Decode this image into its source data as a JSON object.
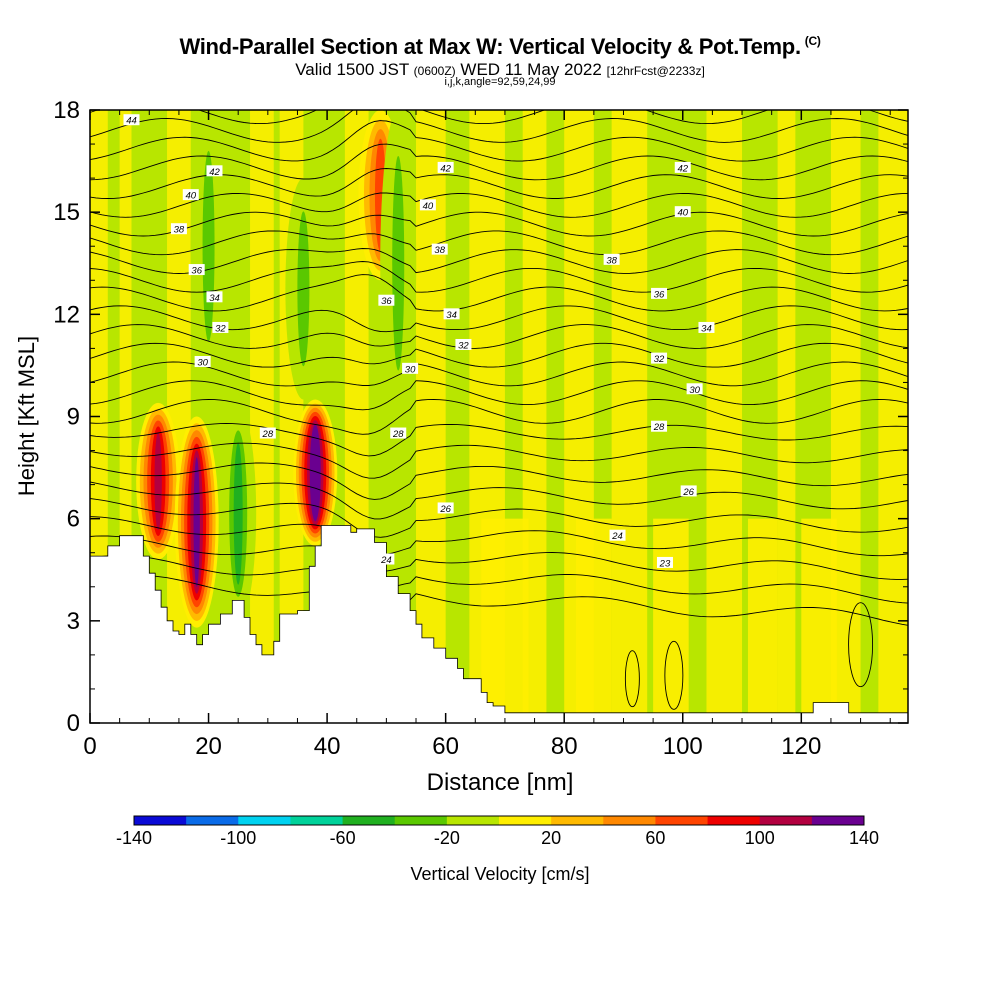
{
  "header": {
    "title": "Wind-Parallel Section at Max W: Vertical Velocity & Pot.Temp.",
    "title_tag": "(C)",
    "subtitle_valid": "Valid 1500 JST",
    "subtitle_z": "(0600Z)",
    "subtitle_date": "WED 11 May 2022",
    "subtitle_fcst": "[12hrFcst@2233z]",
    "indices": "i,j,k,angle=92,59,24,99"
  },
  "colorbar": {
    "label": "Vertical Velocity [cm/s]",
    "tick_labels": [
      "-140",
      "-100",
      "-60",
      "-20",
      "20",
      "60",
      "100",
      "140"
    ],
    "colors": [
      "#0a0ad6",
      "#0a6be8",
      "#00d2f0",
      "#00d29a",
      "#20b020",
      "#5ac800",
      "#b8e600",
      "#ffee00",
      "#ffba00",
      "#ff8800",
      "#ff4400",
      "#ee0000",
      "#b30040",
      "#6a0090"
    ]
  },
  "chart_data": {
    "type": "heatmap",
    "xlabel": "Distance [nm]",
    "ylabel": "Height [Kft MSL]",
    "xlim": [
      0,
      138
    ],
    "ylim": [
      0,
      18
    ],
    "x_ticks": [
      "0",
      "20",
      "40",
      "60",
      "80",
      "100",
      "120"
    ],
    "y_ticks": [
      "0",
      "3",
      "6",
      "9",
      "12",
      "15",
      "18"
    ],
    "terrain_height_kft": [
      [
        0,
        4.9
      ],
      [
        3,
        5.2
      ],
      [
        5,
        5.5
      ],
      [
        8,
        5.5
      ],
      [
        9,
        4.9
      ],
      [
        10,
        4.4
      ],
      [
        11,
        3.9
      ],
      [
        12,
        3.4
      ],
      [
        13,
        3.0
      ],
      [
        14,
        2.7
      ],
      [
        15,
        2.6
      ],
      [
        16,
        2.9
      ],
      [
        17,
        2.6
      ],
      [
        18,
        2.3
      ],
      [
        19,
        2.6
      ],
      [
        20,
        2.9
      ],
      [
        22,
        3.2
      ],
      [
        24,
        3.6
      ],
      [
        26,
        3.1
      ],
      [
        27,
        2.6
      ],
      [
        28,
        2.3
      ],
      [
        29,
        2.0
      ],
      [
        31,
        2.4
      ],
      [
        32,
        3.2
      ],
      [
        34,
        3.2
      ],
      [
        35,
        3.3
      ],
      [
        37,
        4.6
      ],
      [
        38,
        5.2
      ],
      [
        39,
        5.8
      ],
      [
        42,
        5.8
      ],
      [
        44,
        5.6
      ],
      [
        45,
        5.7
      ],
      [
        48,
        5.3
      ],
      [
        50,
        4.3
      ],
      [
        52,
        3.8
      ],
      [
        54,
        3.3
      ],
      [
        55,
        2.9
      ],
      [
        56,
        2.5
      ],
      [
        58,
        2.2
      ],
      [
        60,
        1.9
      ],
      [
        62,
        1.6
      ],
      [
        63,
        1.3
      ],
      [
        66,
        0.9
      ],
      [
        67,
        0.6
      ],
      [
        68,
        0.5
      ],
      [
        70,
        0.3
      ],
      [
        122,
        0.3
      ],
      [
        122,
        0.6
      ],
      [
        127,
        0.6
      ],
      [
        128,
        0.3
      ],
      [
        138,
        0.3
      ]
    ],
    "vertical_velocity_cells": [
      {
        "label": "updraft",
        "x": 11.5,
        "y_bottom": 4.8,
        "y_top": 9.4,
        "w_cms": 100
      },
      {
        "label": "updraft",
        "x": 18,
        "y_bottom": 2.8,
        "y_top": 9.0,
        "w_cms": 120
      },
      {
        "label": "updraft",
        "x": 38,
        "y_bottom": 5.2,
        "y_top": 9.5,
        "w_cms": 140
      },
      {
        "label": "updraft",
        "x": 49,
        "y_bottom": 13.0,
        "y_top": 18,
        "w_cms": 60
      },
      {
        "label": "downdraft",
        "x": 25,
        "y_bottom": 3.0,
        "y_top": 9.3,
        "w_cms": -60
      },
      {
        "label": "downdraft",
        "x": 20,
        "y_bottom": 10.0,
        "y_top": 18,
        "w_cms": -40
      },
      {
        "label": "downdraft",
        "x": 36,
        "y_bottom": 9.5,
        "y_top": 16,
        "w_cms": -40
      },
      {
        "label": "downdraft",
        "x": 52,
        "y_bottom": 9.0,
        "y_top": 18,
        "w_cms": -40
      }
    ],
    "isentropes": {
      "units": "C",
      "labels": [
        {
          "text": "44",
          "x": 7,
          "y": 17.7
        },
        {
          "text": "42",
          "x": 21,
          "y": 16.2
        },
        {
          "text": "42",
          "x": 60,
          "y": 16.3
        },
        {
          "text": "42",
          "x": 100,
          "y": 16.3
        },
        {
          "text": "40",
          "x": 17,
          "y": 15.5
        },
        {
          "text": "40",
          "x": 57,
          "y": 15.2
        },
        {
          "text": "40",
          "x": 100,
          "y": 15.0
        },
        {
          "text": "38",
          "x": 15,
          "y": 14.5
        },
        {
          "text": "38",
          "x": 59,
          "y": 13.9
        },
        {
          "text": "38",
          "x": 88,
          "y": 13.6
        },
        {
          "text": "36",
          "x": 18,
          "y": 13.3
        },
        {
          "text": "36",
          "x": 50,
          "y": 12.4
        },
        {
          "text": "36",
          "x": 96,
          "y": 12.6
        },
        {
          "text": "34",
          "x": 21,
          "y": 12.5
        },
        {
          "text": "34",
          "x": 61,
          "y": 12.0
        },
        {
          "text": "34",
          "x": 104,
          "y": 11.6
        },
        {
          "text": "32",
          "x": 22,
          "y": 11.6
        },
        {
          "text": "32",
          "x": 63,
          "y": 11.1
        },
        {
          "text": "32",
          "x": 96,
          "y": 10.7
        },
        {
          "text": "30",
          "x": 19,
          "y": 10.6
        },
        {
          "text": "30",
          "x": 54,
          "y": 10.4
        },
        {
          "text": "30",
          "x": 102,
          "y": 9.8
        },
        {
          "text": "28",
          "x": 30,
          "y": 8.5
        },
        {
          "text": "28",
          "x": 52,
          "y": 8.5
        },
        {
          "text": "28",
          "x": 96,
          "y": 8.7
        },
        {
          "text": "26",
          "x": 60,
          "y": 6.3
        },
        {
          "text": "26",
          "x": 101,
          "y": 6.8
        },
        {
          "text": "24",
          "x": 50,
          "y": 4.8
        },
        {
          "text": "24",
          "x": 89,
          "y": 5.5
        },
        {
          "text": "23",
          "x": 97,
          "y": 4.7
        }
      ]
    },
    "legend": "colorbar-bottom"
  }
}
